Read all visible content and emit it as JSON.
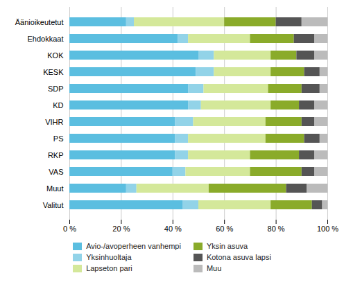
{
  "chart_data": {
    "type": "bar",
    "orientation": "horizontal",
    "stacked": true,
    "categories": [
      "Äänioikeutetut",
      "Ehdokkaat",
      "KOK",
      "KESK",
      "SDP",
      "KD",
      "VIHR",
      "PS",
      "RKP",
      "VAS",
      "Muut",
      "Valitut"
    ],
    "series": [
      {
        "name": "Avio-/avoperheen vanhempi",
        "color": "#5bbee0",
        "values": [
          22,
          42,
          50,
          49,
          46,
          46,
          41,
          41,
          41,
          40,
          22,
          44
        ]
      },
      {
        "name": "Yksinhuoltaja",
        "color": "#92d3e8",
        "values": [
          3,
          4,
          6,
          7,
          6,
          5,
          7,
          5,
          5,
          5,
          4,
          6
        ]
      },
      {
        "name": "Lapseton pari",
        "color": "#d4e89a",
        "values": [
          35,
          24,
          22,
          22,
          25,
          27,
          28,
          30,
          24,
          25,
          28,
          28
        ]
      },
      {
        "name": "Yksin asuva",
        "color": "#8aab2a",
        "values": [
          20,
          17,
          10,
          13,
          13,
          11,
          14,
          15,
          19,
          20,
          30,
          16
        ]
      },
      {
        "name": "Kotona asuva lapsi",
        "color": "#555555",
        "values": [
          10,
          8,
          7,
          6,
          7,
          6,
          5,
          6,
          6,
          5,
          8,
          4
        ]
      },
      {
        "name": "Muu",
        "color": "#bbbbbb",
        "values": [
          10,
          5,
          5,
          3,
          3,
          5,
          5,
          3,
          5,
          5,
          8,
          2
        ]
      }
    ],
    "xlim": [
      0,
      100
    ],
    "xticks": [
      {
        "value": 0,
        "label": "0 %"
      },
      {
        "value": 20,
        "label": "20 %"
      },
      {
        "value": 40,
        "label": "40 %"
      },
      {
        "value": 60,
        "label": "60 %"
      },
      {
        "value": 80,
        "label": "80 %"
      },
      {
        "value": 100,
        "label": "100 %"
      }
    ],
    "grid": true,
    "legend": "bottom"
  }
}
